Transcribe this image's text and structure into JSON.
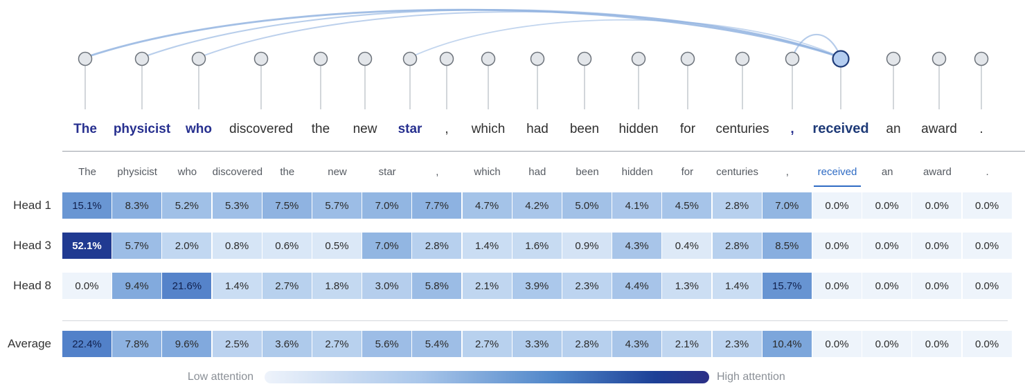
{
  "tokens": [
    "The",
    "physicist",
    "who",
    "discovered",
    "the",
    "new",
    "star",
    ",",
    "which",
    "had",
    "been",
    "hidden",
    "for",
    "centuries",
    ",",
    "received",
    "an",
    "award",
    "."
  ],
  "highlighted_token_indices": [
    0,
    1,
    2,
    6,
    14
  ],
  "target_token_index": 15,
  "column_headers": [
    "The",
    "physicist",
    "who",
    "discovered",
    "the",
    "new",
    "star",
    ",",
    "which",
    "had",
    "been",
    "hidden",
    "for",
    "centuries",
    ",",
    "received",
    "an",
    "award",
    "."
  ],
  "rows": [
    {
      "label": "Head 1",
      "values": [
        15.1,
        8.3,
        5.2,
        5.3,
        7.5,
        5.7,
        7.0,
        7.7,
        4.7,
        4.2,
        5.0,
        4.1,
        4.5,
        2.8,
        7.0,
        0.0,
        0.0,
        0.0,
        0.0
      ],
      "display": [
        "15.1%",
        "8.3%",
        "5.2%",
        "5.3%",
        "7.5%",
        "5.7%",
        "7.0%",
        "7.7%",
        "4.7%",
        "4.2%",
        "5.0%",
        "4.1%",
        "4.5%",
        "2.8%",
        "7.0%",
        "0.0%",
        "0.0%",
        "0.0%",
        "0.0%"
      ]
    },
    {
      "label": "Head 3",
      "values": [
        52.1,
        5.7,
        2.0,
        0.8,
        0.6,
        0.5,
        7.0,
        2.8,
        1.4,
        1.6,
        0.9,
        4.3,
        0.4,
        2.8,
        8.5,
        0.0,
        0.0,
        0.0,
        0.0
      ],
      "display": [
        "52.1%",
        "5.7%",
        "2.0%",
        "0.8%",
        "0.6%",
        "0.5%",
        "7.0%",
        "2.8%",
        "1.4%",
        "1.6%",
        "0.9%",
        "4.3%",
        "0.4%",
        "2.8%",
        "8.5%",
        "0.0%",
        "0.0%",
        "0.0%",
        "0.0%"
      ]
    },
    {
      "label": "Head 8",
      "values": [
        0.0,
        9.4,
        21.6,
        1.4,
        2.7,
        1.8,
        3.0,
        5.8,
        2.1,
        3.9,
        2.3,
        4.4,
        1.3,
        1.4,
        15.7,
        0.0,
        0.0,
        0.0,
        0.0
      ],
      "display": [
        "0.0%",
        "9.4%",
        "21.6%",
        "1.4%",
        "2.7%",
        "1.8%",
        "3.0%",
        "5.8%",
        "2.1%",
        "3.9%",
        "2.3%",
        "4.4%",
        "1.3%",
        "1.4%",
        "15.7%",
        "0.0%",
        "0.0%",
        "0.0%",
        "0.0%"
      ]
    }
  ],
  "average_row": {
    "label": "Average",
    "values": [
      22.4,
      7.8,
      9.6,
      2.5,
      3.6,
      2.7,
      5.6,
      5.4,
      2.7,
      3.3,
      2.8,
      4.3,
      2.1,
      2.3,
      10.4,
      0.0,
      0.0,
      0.0,
      0.0
    ],
    "display": [
      "22.4%",
      "7.8%",
      "9.6%",
      "2.5%",
      "3.6%",
      "2.7%",
      "5.6%",
      "5.4%",
      "2.7%",
      "3.3%",
      "2.8%",
      "4.3%",
      "2.1%",
      "2.3%",
      "10.4%",
      "0.0%",
      "0.0%",
      "0.0%",
      "0.0%"
    ]
  },
  "arcs": [
    {
      "from": 0,
      "to": 15,
      "strength": 0.85
    },
    {
      "from": 1,
      "to": 15,
      "strength": 0.5
    },
    {
      "from": 2,
      "to": 15,
      "strength": 0.45
    },
    {
      "from": 6,
      "to": 15,
      "strength": 0.35
    },
    {
      "from": 14,
      "to": 15,
      "strength": 0.55
    }
  ],
  "legend": {
    "low_label": "Low attention",
    "high_label": "High attention"
  },
  "colors": {
    "low": "#eef3fb",
    "high": "#2b2f86",
    "accent": "#2e6bc4",
    "highlight_text": "#27308f"
  }
}
